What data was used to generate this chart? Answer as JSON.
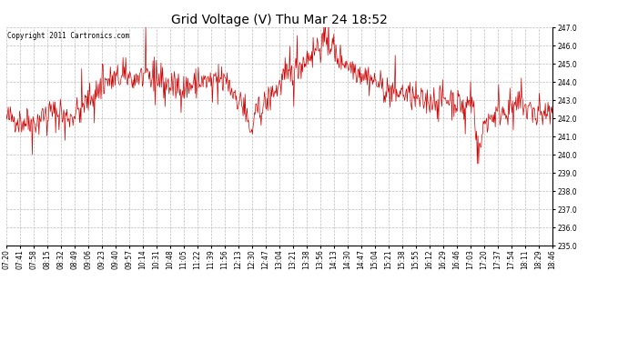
{
  "title": "Grid Voltage (V) Thu Mar 24 18:52",
  "copyright_text": "Copyright 2011 Cartronics.com",
  "line_color": "#cc0000",
  "background_color": "#ffffff",
  "plot_bg_color": "#ffffff",
  "grid_color": "#bbbbbb",
  "grid_linestyle": "--",
  "ylim": [
    235.0,
    247.0
  ],
  "ytick_interval": 1.0,
  "title_fontsize": 10,
  "copyright_fontsize": 5.5,
  "tick_fontsize": 5.5,
  "x_tick_labels": [
    "07:20",
    "07:41",
    "07:58",
    "08:15",
    "08:32",
    "08:49",
    "09:06",
    "09:23",
    "09:40",
    "09:57",
    "10:14",
    "10:31",
    "10:48",
    "11:05",
    "11:22",
    "11:39",
    "11:56",
    "12:13",
    "12:30",
    "12:47",
    "13:04",
    "13:21",
    "13:38",
    "13:56",
    "14:13",
    "14:30",
    "14:47",
    "15:04",
    "15:21",
    "15:38",
    "15:55",
    "16:12",
    "16:29",
    "16:46",
    "17:03",
    "17:20",
    "17:37",
    "17:54",
    "18:11",
    "18:29",
    "18:46"
  ],
  "seed": 42,
  "n_points": 820
}
